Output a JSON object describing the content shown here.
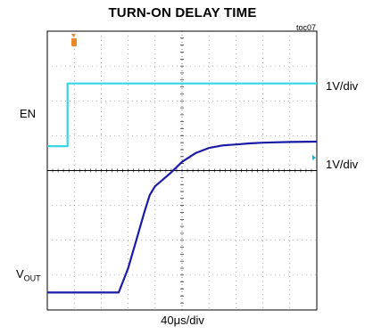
{
  "chart_data": {
    "type": "line",
    "title": "TURN-ON DELAY TIME",
    "figure_id": "toc07",
    "x_scale": "40μs/div",
    "x_divisions": 10,
    "y_divisions": 8,
    "grid": true,
    "series": [
      {
        "name": "EN",
        "scale": "1V/div",
        "color": "#33d6e6",
        "x": [
          0,
          0.75,
          0.75,
          10
        ],
        "y": [
          4.7,
          4.7,
          6.5,
          6.5
        ]
      },
      {
        "name": "VOUT",
        "scale": "1V/div",
        "color": "#1a1aa6",
        "x": [
          0,
          2.65,
          3.0,
          3.3,
          3.6,
          3.8,
          4.0,
          4.3,
          4.6,
          5.0,
          5.5,
          6.0,
          6.5,
          7.0,
          7.5,
          8.0,
          9.0,
          10.0
        ],
        "y": [
          0.5,
          0.5,
          1.2,
          2.0,
          2.8,
          3.3,
          3.55,
          3.75,
          3.95,
          4.25,
          4.5,
          4.65,
          4.72,
          4.75,
          4.78,
          4.8,
          4.82,
          4.83
        ]
      }
    ]
  },
  "labels": {
    "en": "EN",
    "en_scale": "1V/div",
    "vout_main": "V",
    "vout_sub": "OUT",
    "vout_scale": "1V/div",
    "x_scale": "40μs/div"
  }
}
